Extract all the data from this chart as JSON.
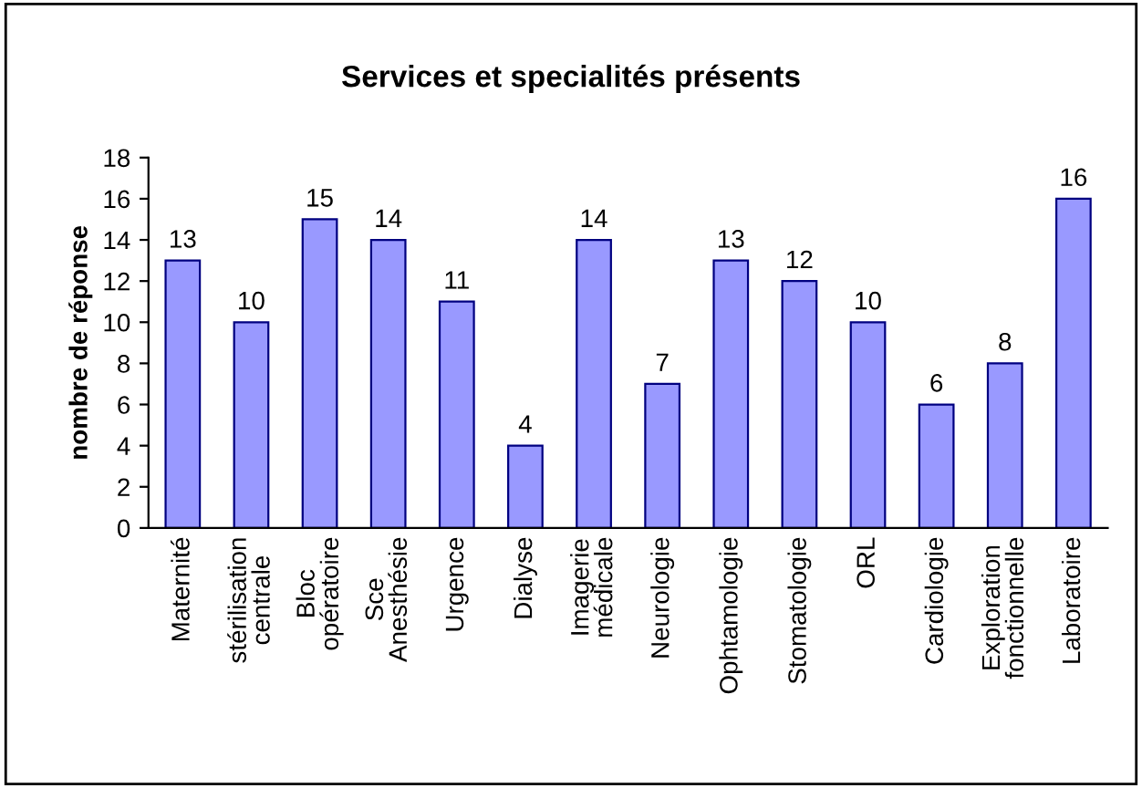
{
  "chart_data": {
    "type": "bar",
    "title": "Services et specialités présents",
    "ylabel": "nombre de réponse",
    "categories": [
      "Maternité",
      "stérilisation\ncentrale",
      "Bloc\nopératoire",
      "Sce\nAnesthésie",
      "Urgence",
      "Dialyse",
      "Imagerie\nmédicale",
      "Neurologie",
      "Ophtamologie",
      "Stomatologie",
      "ORL",
      "Cardiologie",
      "Exploration\nfonctionnelle",
      "Laboratoire"
    ],
    "values": [
      13,
      10,
      15,
      14,
      11,
      4,
      14,
      7,
      13,
      12,
      10,
      6,
      8,
      16
    ],
    "color": "#9999ff",
    "ylim": [
      0,
      18
    ],
    "yticks": [
      0,
      2,
      4,
      6,
      8,
      10,
      12,
      14,
      16,
      18
    ],
    "grid": false,
    "legend": false,
    "data_labels": true
  }
}
